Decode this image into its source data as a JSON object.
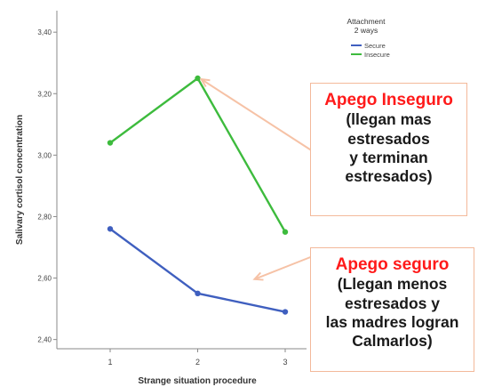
{
  "chart_data": {
    "type": "line",
    "xlabel": "Strange situation procedure",
    "ylabel": "Salivary cortisol concentration",
    "x": [
      1,
      2,
      3
    ],
    "x_tick_labels": [
      "1",
      "2",
      "3"
    ],
    "y_ticks": [
      2.4,
      2.6,
      2.8,
      3.0,
      3.2,
      3.4
    ],
    "y_tick_labels": [
      "2,40",
      "2,60",
      "2,80",
      "3,00",
      "3,20",
      "3,40"
    ],
    "ylim": [
      2.37,
      3.47
    ],
    "grid": false,
    "legend": {
      "title_line1": "Attachment",
      "title_line2": "2 ways",
      "placement": "top-right"
    },
    "series": [
      {
        "name": "Secure",
        "color": "#3f5fbf",
        "values": [
          2.76,
          2.55,
          2.49
        ]
      },
      {
        "name": "Insecure",
        "color": "#3dbb3d",
        "values": [
          3.04,
          3.25,
          2.75
        ]
      }
    ]
  },
  "annotations": {
    "insecure": {
      "headline": "Apego Inseguro",
      "lines": [
        "(llegan mas",
        "estresados",
        "y terminan",
        "estresados)"
      ],
      "arrow_target": {
        "x": 2,
        "y": 3.25
      }
    },
    "secure": {
      "headline": "Apego seguro",
      "lines": [
        "(Llegan menos",
        "estresados y",
        "las madres logran",
        "Calmarlos)"
      ],
      "arrow_target": {
        "x": 2.65,
        "y": 2.55
      }
    },
    "headline_color": "#ff1a1a",
    "border_color": "#f3b99a",
    "arrow_color": "#f6c2a6"
  }
}
